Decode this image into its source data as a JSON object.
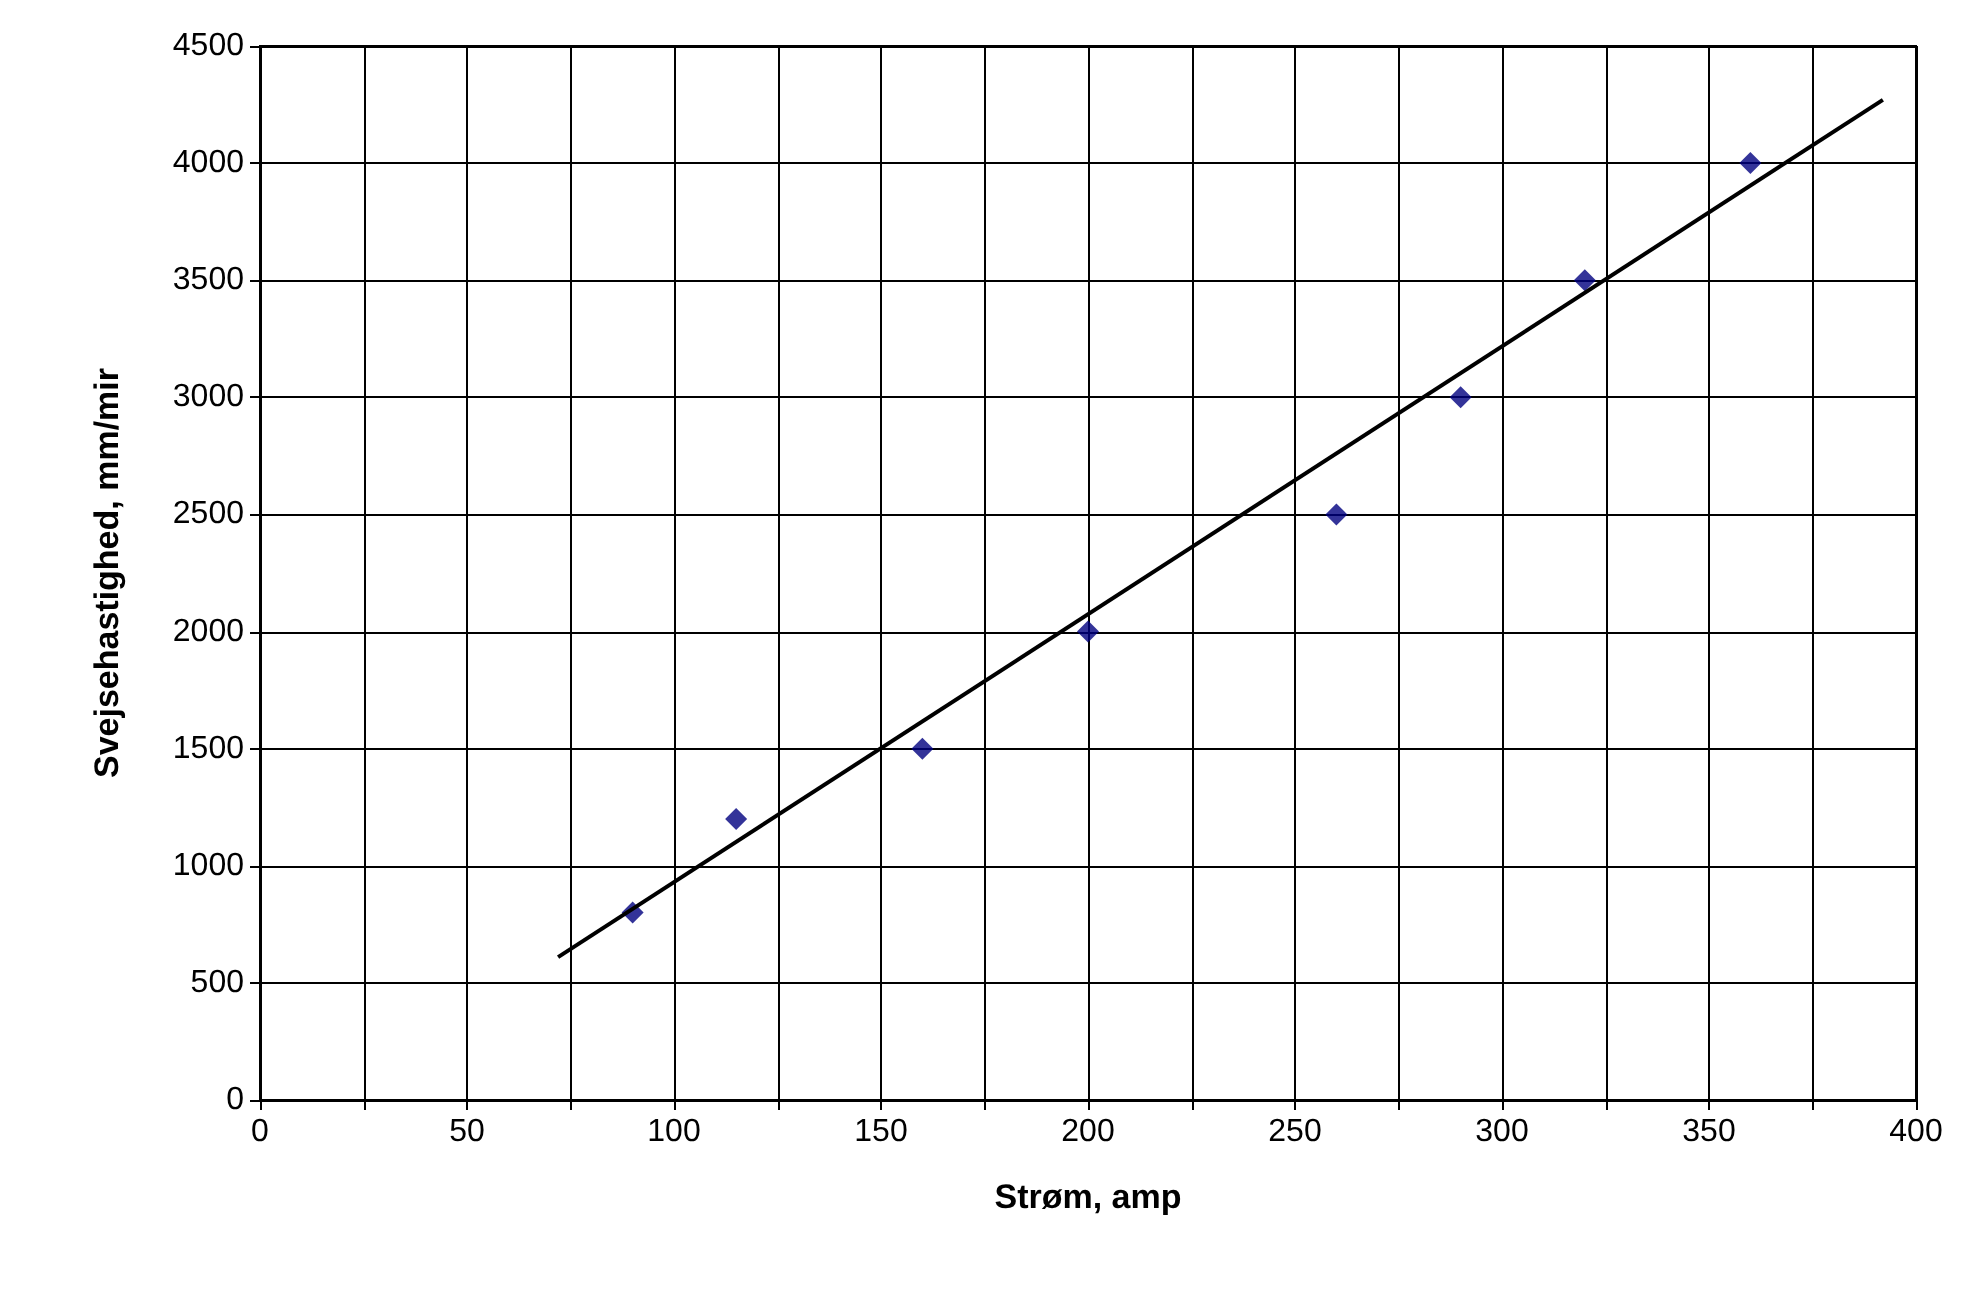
{
  "chart_data": {
    "type": "scatter",
    "xlabel": "Strøm, amp",
    "ylabel": "Svejsehastighed, mm/mir",
    "series": [
      {
        "color": "#000080",
        "marker": "diamond",
        "x": [
          90,
          115,
          160,
          200,
          260,
          290,
          320,
          360
        ],
        "values": [
          800,
          1200,
          1500,
          2000,
          2500,
          3000,
          3500,
          4000
        ]
      },
      {
        "type": "line",
        "color": "#000000",
        "marker": "none",
        "line_style": "solid",
        "x": [
          72,
          392
        ],
        "values": [
          610,
          4270
        ]
      }
    ],
    "xlim": [
      0,
      400
    ],
    "xticks": [
      0,
      {
        "value": 25,
        "label": null
      },
      50,
      {
        "value": 75,
        "label": null
      },
      100,
      {
        "value": 125,
        "label": null
      },
      150,
      {
        "value": 175,
        "label": null
      },
      200,
      {
        "value": 225,
        "label": null
      },
      250,
      {
        "value": 275,
        "label": null
      },
      300,
      {
        "value": 325,
        "label": null
      },
      350,
      {
        "value": 375,
        "label": null
      },
      400
    ],
    "ylim": [
      0,
      4500
    ],
    "yticks": [
      0,
      500,
      1000,
      1500,
      2000,
      2500,
      3000,
      3500,
      4000,
      4500
    ],
    "grid": true
  }
}
